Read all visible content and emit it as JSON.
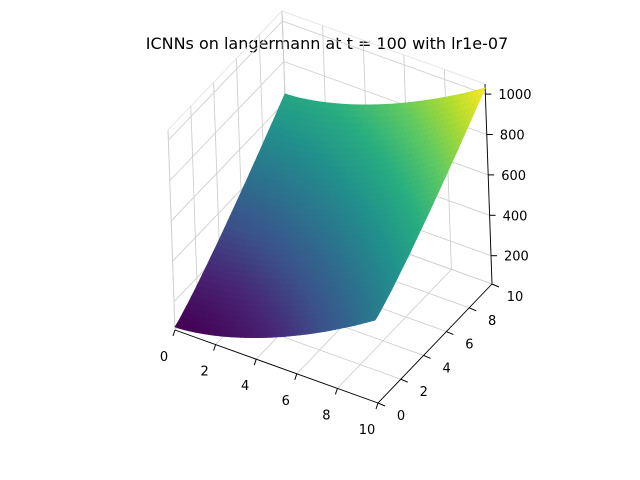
{
  "chart_data": {
    "type": "surface",
    "title": "ICNNs on langermann at t = 100 with lr1e-07",
    "colormap": "viridis",
    "x": {
      "label": "",
      "range": [
        0,
        10
      ],
      "ticks": [
        "0",
        "2",
        "4",
        "6",
        "8",
        "10"
      ]
    },
    "y": {
      "label": "",
      "range": [
        0,
        10
      ],
      "ticks": [
        "0",
        "2",
        "4",
        "6",
        "8",
        "10"
      ]
    },
    "z": {
      "label": "",
      "range": [
        60,
        1050
      ],
      "ticks": [
        "200",
        "400",
        "600",
        "800",
        "1000"
      ]
    },
    "surface": {
      "corners": [
        {
          "x": 0,
          "y": 0,
          "z": 75
        },
        {
          "x": 10,
          "y": 0,
          "z": 470
        },
        {
          "x": 0,
          "y": 10,
          "z": 640
        },
        {
          "x": 10,
          "y": 10,
          "z": 1030
        }
      ],
      "color_range": [
        75,
        1030
      ]
    },
    "grid": true
  }
}
